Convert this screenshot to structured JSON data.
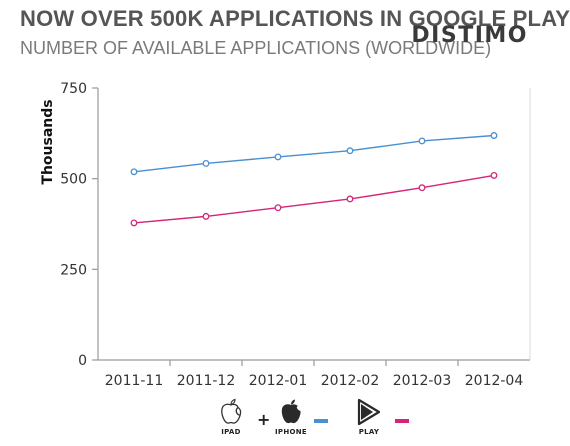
{
  "header": {
    "title": "NOW OVER 500K APPLICATIONS IN GOOGLE PLAY",
    "subtitle": "NUMBER OF AVAILABLE APPLICATIONS (WORLDWIDE)",
    "brand": "DISTIMO"
  },
  "colors": {
    "ios": "#4a8fd0",
    "play": "#d6247a",
    "axis": "#9a9a9a"
  },
  "legend": {
    "ipad_label": "IPAD",
    "iphone_label": "IPHONE",
    "play_label": "PLAY",
    "plus": "+",
    "ipad_icon": "apple-outline-icon",
    "iphone_icon": "apple-filled-icon",
    "play_icon": "play-triangle-icon"
  },
  "chart_data": {
    "type": "line",
    "title": "NOW OVER 500K APPLICATIONS IN GOOGLE PLAY",
    "subtitle": "NUMBER OF AVAILABLE APPLICATIONS (WORLDWIDE)",
    "xlabel": "",
    "ylabel": "Thousands",
    "categories": [
      "2011-11",
      "2011-12",
      "2012-01",
      "2012-02",
      "2012-03",
      "2012-04"
    ],
    "ylim": [
      0,
      750
    ],
    "yticks": [
      0,
      250,
      500,
      750
    ],
    "grid": false,
    "legend_placement": "bottom",
    "series": [
      {
        "name": "IPAD + IPHONE",
        "color": "#4a8fd0",
        "values": [
          519,
          542,
          560,
          577,
          604,
          619
        ]
      },
      {
        "name": "PLAY",
        "color": "#d6247a",
        "values": [
          378,
          396,
          420,
          444,
          475,
          509
        ]
      }
    ]
  }
}
